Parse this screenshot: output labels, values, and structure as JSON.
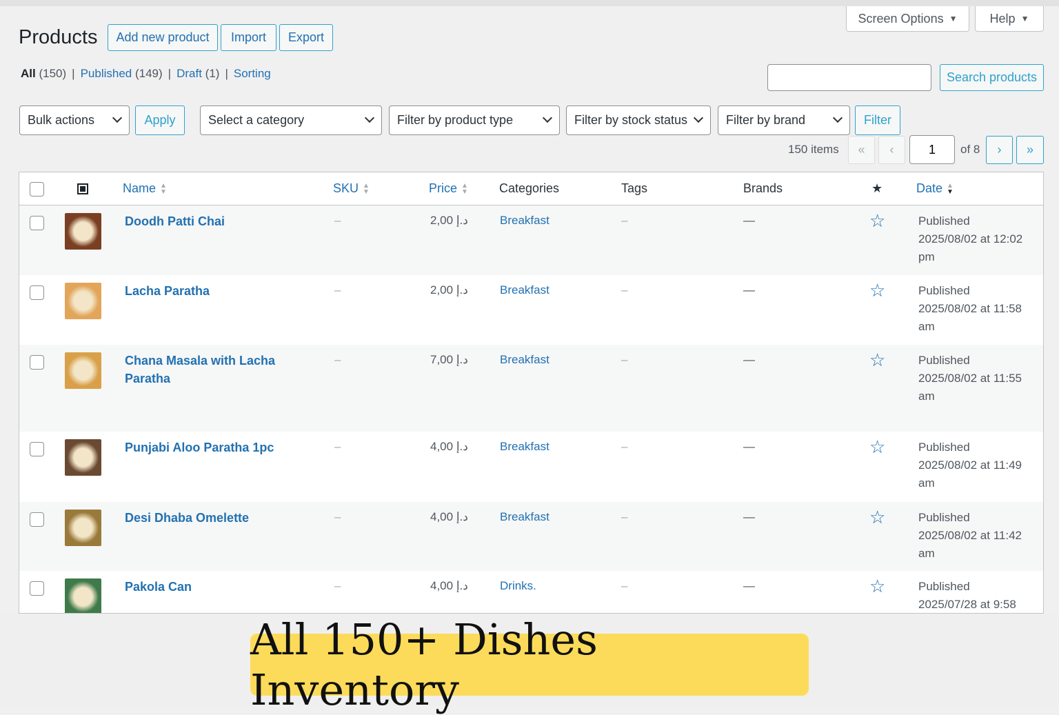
{
  "header": {
    "title": "Products",
    "add_new": "Add new product",
    "import": "Import",
    "export": "Export",
    "screen_options": "Screen Options",
    "help": "Help"
  },
  "views": [
    {
      "label": "All",
      "count": "(150)"
    },
    {
      "label": "Published",
      "count": "(149)"
    },
    {
      "label": "Draft",
      "count": "(1)"
    },
    {
      "label": "Sorting",
      "count": ""
    }
  ],
  "search": {
    "value": "",
    "button": "Search products"
  },
  "filters": {
    "bulk_actions": "Bulk actions",
    "apply": "Apply",
    "category": "Select a category",
    "product_type": "Filter by product type",
    "stock_status": "Filter by stock status",
    "brand": "Filter by brand",
    "filter": "Filter"
  },
  "pagination": {
    "items": "150 items",
    "first": "«",
    "prev": "‹",
    "current_page": "1",
    "of": "of 8",
    "next": "›",
    "last": "»"
  },
  "columns": {
    "name": "Name",
    "sku": "SKU",
    "price": "Price",
    "categories": "Categories",
    "tags": "Tags",
    "brands": "Brands",
    "date": "Date"
  },
  "products": [
    {
      "name": "Doodh Patti Chai",
      "sku": "–",
      "price": "2,00",
      "currency": "د.إ",
      "category": "Breakfast",
      "tags": "–",
      "brands": "—",
      "status": "Published",
      "date": "2025/08/02 at 12:02",
      "ampm": "pm",
      "thumb": "#7a3f22"
    },
    {
      "name": "Lacha Paratha",
      "sku": "–",
      "price": "2,00",
      "currency": "د.إ",
      "category": "Breakfast",
      "tags": "–",
      "brands": "—",
      "status": "Published",
      "date": "2025/08/02 at 11:58",
      "ampm": "am",
      "thumb": "#e2a55a"
    },
    {
      "name": "Chana Masala with Lacha Paratha",
      "sku": "–",
      "price": "7,00",
      "currency": "د.إ",
      "category": "Breakfast",
      "tags": "–",
      "brands": "—",
      "status": "Published",
      "date": "2025/08/02 at 11:55",
      "ampm": "am",
      "thumb": "#d9a049"
    },
    {
      "name": "Punjabi Aloo Paratha 1pc",
      "sku": "–",
      "price": "4,00",
      "currency": "د.إ",
      "category": "Breakfast",
      "tags": "–",
      "brands": "—",
      "status": "Published",
      "date": "2025/08/02 at 11:49",
      "ampm": "am",
      "thumb": "#6b4a33"
    },
    {
      "name": "Desi Dhaba Omelette",
      "sku": "–",
      "price": "4,00",
      "currency": "د.إ",
      "category": "Breakfast",
      "tags": "–",
      "brands": "—",
      "status": "Published",
      "date": "2025/08/02 at 11:42",
      "ampm": "am",
      "thumb": "#9a7a3a"
    },
    {
      "name": "Pakola Can",
      "sku": "–",
      "price": "4,00",
      "currency": "د.إ",
      "category": "Drinks.",
      "tags": "–",
      "brands": "—",
      "status": "Published",
      "date": "2025/07/28 at 9:58",
      "ampm": "",
      "thumb": "#3f7a4a"
    }
  ],
  "banner": {
    "text": "All 150+ Dishes Inventory"
  }
}
